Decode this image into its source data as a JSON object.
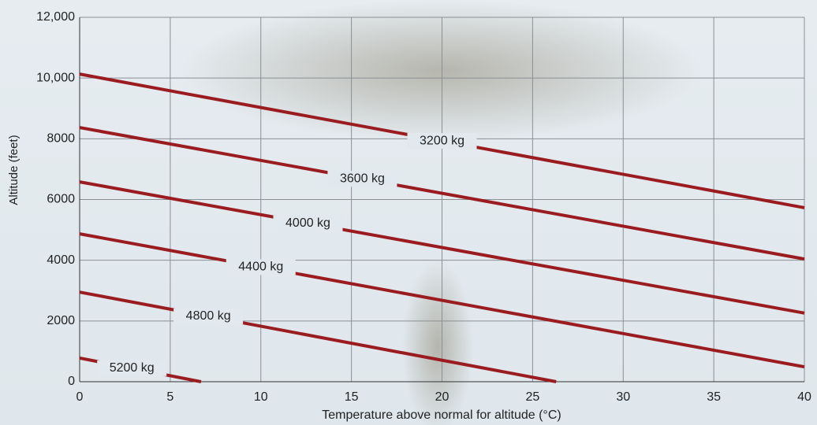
{
  "chart_data": {
    "type": "line",
    "xlabel": "Temperature above normal for altitude (°C)",
    "ylabel": "Altitude (feet)",
    "xlim": [
      0,
      40
    ],
    "xticks": [
      0,
      5,
      10,
      15,
      20,
      25,
      30,
      35,
      40
    ],
    "ylim": [
      0,
      12000
    ],
    "yticks": [
      0,
      2000,
      4000,
      6000,
      8000,
      {
        "value": 10000,
        "label": "10,000"
      },
      {
        "value": 12000,
        "label": "12,000"
      }
    ],
    "grid": true,
    "series": [
      {
        "name": "3200 kg",
        "color": "#9b1c20",
        "x": [
          0,
          40
        ],
        "values": [
          10130,
          5730
        ]
      },
      {
        "name": "3600 kg",
        "color": "#9b1c20",
        "x": [
          0,
          40
        ],
        "values": [
          8370,
          4040
        ]
      },
      {
        "name": "4000 kg",
        "color": "#9b1c20",
        "x": [
          0,
          40
        ],
        "values": [
          6580,
          2260
        ]
      },
      {
        "name": "4400 kg",
        "color": "#9b1c20",
        "x": [
          0,
          40
        ],
        "values": [
          4870,
          490
        ]
      },
      {
        "name": "4800 kg",
        "color": "#9b1c20",
        "x": [
          0,
          26.3
        ],
        "values": [
          2950,
          0
        ]
      },
      {
        "name": "5200 kg",
        "color": "#9b1c20",
        "x": [
          0,
          6.7
        ],
        "values": [
          780,
          0
        ]
      }
    ]
  }
}
